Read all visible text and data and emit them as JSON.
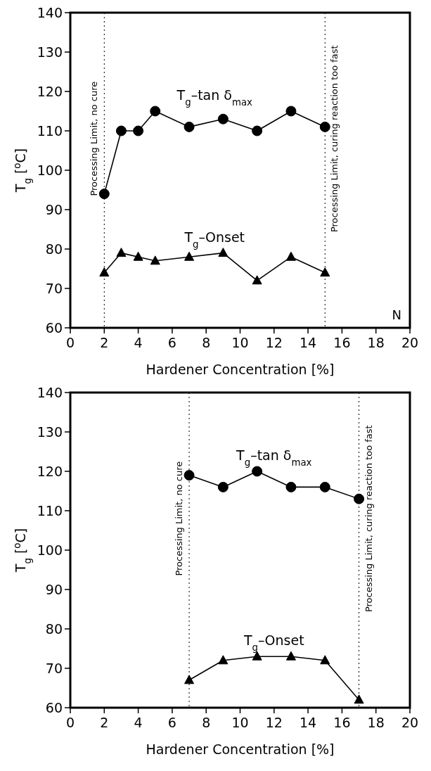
{
  "chart_data": [
    {
      "type": "line",
      "xlabel": "Hardener Concentration [%]",
      "ylabel": "T$_{g}$ [$^{o}$C]",
      "xlim": [
        0,
        20
      ],
      "ylim": [
        60,
        140
      ],
      "xticks": [
        0,
        2,
        4,
        6,
        8,
        10,
        12,
        14,
        16,
        18,
        20
      ],
      "yticks": [
        60,
        70,
        80,
        90,
        100,
        110,
        120,
        130,
        140
      ],
      "grid": false,
      "line_style": "solid",
      "series": [
        {
          "name": "T$_{g}$–tan δ$_{max}$",
          "color": "#000000",
          "marker": "circle",
          "x": [
            2,
            3,
            4,
            5,
            7,
            9,
            11,
            13,
            15
          ],
          "values": [
            94,
            110,
            110,
            115,
            111,
            113,
            110,
            115,
            111
          ]
        },
        {
          "name": "T$_{g}$–Onset",
          "color": "#000000",
          "marker": "triangle",
          "x": [
            2,
            3,
            4,
            5,
            7,
            9,
            11,
            13,
            15
          ],
          "values": [
            74,
            79,
            78,
            77,
            78,
            79,
            72,
            78,
            74
          ]
        }
      ],
      "ref_lines": [
        {
          "axis": "x",
          "value": 2,
          "label": "Processing Limit, no cure",
          "line_style": "dotted"
        },
        {
          "axis": "x",
          "value": 15,
          "label": "Processing Limit, curing reaction too fast",
          "line_style": "dotted"
        }
      ],
      "annotations": [
        "N"
      ]
    },
    {
      "type": "line",
      "xlabel": "Hardener Concentration [%]",
      "ylabel": "T$_{g}$ [$^{o}$C]",
      "xlim": [
        0,
        20
      ],
      "ylim": [
        60,
        140
      ],
      "xticks": [
        0,
        2,
        4,
        6,
        8,
        10,
        12,
        14,
        16,
        18,
        20
      ],
      "yticks": [
        60,
        70,
        80,
        90,
        100,
        110,
        120,
        130,
        140
      ],
      "grid": false,
      "line_style": "solid",
      "series": [
        {
          "name": "T$_{g}$–tan δ$_{max}$",
          "color": "#000000",
          "marker": "circle",
          "x": [
            7,
            9,
            11,
            13,
            15,
            17
          ],
          "values": [
            119,
            116,
            120,
            116,
            116,
            113
          ]
        },
        {
          "name": "T$_{g}$–Onset",
          "color": "#000000",
          "marker": "triangle",
          "x": [
            7,
            9,
            11,
            13,
            15,
            17
          ],
          "values": [
            67,
            72,
            73,
            73,
            72,
            62
          ]
        }
      ],
      "ref_lines": [
        {
          "axis": "x",
          "value": 7,
          "label": "Processing Limit, no cure",
          "line_style": "dotted"
        },
        {
          "axis": "x",
          "value": 17,
          "label": "Processing Limit, curing reaction too fast",
          "line_style": "dotted"
        }
      ]
    }
  ]
}
